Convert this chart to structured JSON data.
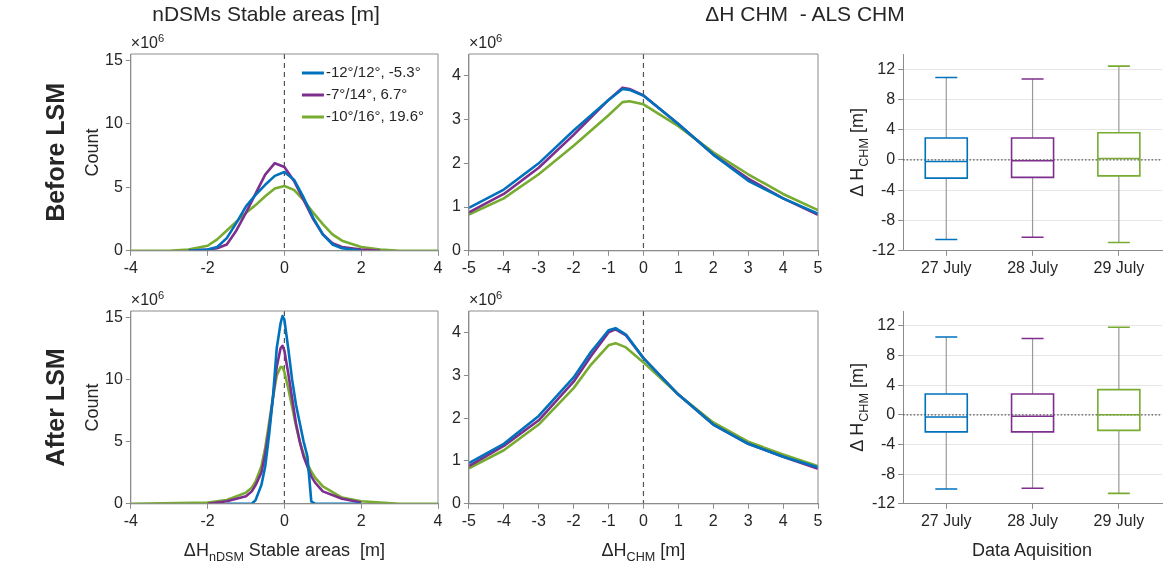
{
  "chart_data": [
    {
      "type": "line",
      "title": "nDSMs Stable areas [m]",
      "ylabel": "Count",
      "annotations": [
        "×10$^{6}$",
        "Before LSM"
      ],
      "x": [
        -4,
        -3,
        -2.5,
        -2,
        -1.75,
        -1.5,
        -1.25,
        -1,
        -0.75,
        -0.5,
        -0.25,
        0,
        0.25,
        0.5,
        0.75,
        1,
        1.25,
        1.5,
        2,
        2.5,
        3,
        4
      ],
      "xlim": [
        -4,
        4
      ],
      "xticks": [
        -4,
        -2,
        0,
        2,
        4
      ],
      "ylim": [
        0,
        15.5
      ],
      "yticks": [
        0,
        5,
        10,
        15
      ],
      "legend": "top right",
      "ref_lines": [
        {
          "axis": "x",
          "value": 0,
          "line_style": "dashed"
        }
      ],
      "series": [
        {
          "name": "-12°/12°, -5.3°",
          "color": "#0072bd",
          "values": [
            null,
            null,
            0,
            0.1,
            0.3,
            1.0,
            2.2,
            3.5,
            4.4,
            5.2,
            5.9,
            6.2,
            5.6,
            4.2,
            2.6,
            1.3,
            0.5,
            0.2,
            0,
            null,
            null,
            null
          ]
        },
        {
          "name": "-7°/14°, 6.7°",
          "color": "#7e2f8e",
          "values": [
            null,
            null,
            0,
            0.1,
            0.2,
            0.5,
            1.6,
            3.0,
            4.5,
            6.0,
            6.9,
            6.6,
            5.5,
            4.0,
            2.5,
            1.3,
            0.6,
            0.3,
            0.1,
            0,
            null,
            null
          ]
        },
        {
          "name": "-10°/16°, 19.6°",
          "color": "#77ac30",
          "values": [
            0,
            0,
            0.1,
            0.4,
            0.9,
            1.6,
            2.3,
            3.0,
            3.6,
            4.3,
            4.9,
            5.1,
            4.8,
            4.0,
            3.0,
            2.1,
            1.3,
            0.8,
            0.3,
            0.1,
            0,
            0
          ]
        }
      ]
    },
    {
      "type": "line",
      "title": "ΔH CHM  - ALS CHM",
      "annotations": [
        "×10$^{6}$"
      ],
      "x": [
        -5,
        -4,
        -3,
        -2,
        -1,
        -0.6,
        -0.4,
        0,
        1,
        2,
        3,
        4,
        5
      ],
      "xlim": [
        -5,
        5
      ],
      "xticks": [
        -5,
        -4,
        -3,
        -2,
        -1,
        0,
        1,
        2,
        3,
        4,
        5
      ],
      "ylim": [
        0,
        4.5
      ],
      "yticks": [
        0,
        1,
        2,
        3,
        4
      ],
      "ref_lines": [
        {
          "axis": "x",
          "value": 0,
          "line_style": "dashed"
        }
      ],
      "series": [
        {
          "color": "#0072bd",
          "values": [
            0.98,
            1.4,
            2.0,
            2.75,
            3.45,
            3.7,
            3.68,
            3.55,
            2.9,
            2.2,
            1.6,
            1.2,
            0.85
          ]
        },
        {
          "color": "#7e2f8e",
          "values": [
            0.88,
            1.3,
            1.9,
            2.65,
            3.45,
            3.73,
            3.7,
            3.55,
            2.9,
            2.2,
            1.65,
            1.2,
            0.82
          ]
        },
        {
          "color": "#77ac30",
          "values": [
            0.83,
            1.2,
            1.75,
            2.4,
            3.1,
            3.4,
            3.42,
            3.35,
            2.85,
            2.25,
            1.75,
            1.3,
            0.93
          ]
        }
      ]
    },
    {
      "type": "box",
      "ylabel": "Δ H$_{CHM}$ [m]",
      "categories": [
        "27 July",
        "28 July",
        "29 July"
      ],
      "colors": [
        "#0072bd",
        "#7e2f8e",
        "#77ac30"
      ],
      "ylim": [
        -12,
        14
      ],
      "yticks": [
        -12,
        -8,
        -4,
        0,
        4,
        8,
        12
      ],
      "grid": "y",
      "ref_lines": [
        {
          "axis": "y",
          "value": 0,
          "line_style": "dotted"
        }
      ],
      "boxes": [
        {
          "low": -10.5,
          "q1": -2.4,
          "median": -0.2,
          "q3": 2.9,
          "high": 10.9
        },
        {
          "low": -10.2,
          "q1": -2.3,
          "median": -0.1,
          "q3": 2.9,
          "high": 10.7
        },
        {
          "low": -10.9,
          "q1": -2.1,
          "median": 0.2,
          "q3": 3.6,
          "high": 12.4
        }
      ]
    },
    {
      "type": "line",
      "ylabel": "Count",
      "xlabel": "ΔH$_{nDSM}$ Stable areas  [m]",
      "annotations": [
        "×10$^{6}$",
        "After LSM"
      ],
      "x": [
        -4,
        -2,
        -1.5,
        -1,
        -0.85,
        -0.75,
        -0.6,
        -0.5,
        -0.4,
        -0.3,
        -0.2,
        -0.1,
        -0.05,
        0,
        0.1,
        0.2,
        0.3,
        0.4,
        0.5,
        0.6,
        0.7,
        0.8,
        1,
        1.5,
        2,
        3,
        4
      ],
      "xlim": [
        -4,
        4
      ],
      "xticks": [
        -4,
        -2,
        0,
        2,
        4
      ],
      "ylim": [
        0,
        15.5
      ],
      "yticks": [
        0,
        5,
        10,
        15
      ],
      "ref_lines": [
        {
          "axis": "x",
          "value": 0,
          "line_style": "dashed"
        }
      ],
      "series": [
        {
          "color": "#0072bd",
          "values": [
            null,
            null,
            0,
            0,
            0,
            0.3,
            1.5,
            3.0,
            5.5,
            8.5,
            12.5,
            14.5,
            15.1,
            14.8,
            12.5,
            10,
            8,
            6.5,
            5,
            3.8,
            0.2,
            0,
            0,
            0,
            0,
            null,
            null
          ]
        },
        {
          "color": "#7e2f8e",
          "values": [
            null,
            0,
            0.2,
            0.6,
            1.0,
            1.5,
            2.5,
            4,
            6,
            8.5,
            11,
            12.5,
            12.7,
            12.3,
            10.5,
            8.5,
            6.5,
            5,
            3.8,
            3.0,
            2.2,
            1.7,
            1.0,
            0.4,
            0.1,
            null,
            null
          ]
        },
        {
          "color": "#77ac30",
          "values": [
            0,
            0.1,
            0.3,
            0.9,
            1.3,
            1.8,
            3.0,
            4.5,
            6.5,
            8.5,
            10.3,
            11,
            11,
            10.6,
            9.3,
            7.8,
            6.3,
            5,
            4,
            3.2,
            2.6,
            2.1,
            1.4,
            0.5,
            0.2,
            0,
            0
          ]
        }
      ]
    },
    {
      "type": "line",
      "xlabel": "ΔH$_{CHM}$ [m]",
      "annotations": [
        "×10$^{6}$"
      ],
      "x": [
        -5,
        -4,
        -3,
        -2,
        -1.5,
        -1,
        -0.8,
        -0.5,
        0,
        1,
        2,
        3,
        4,
        5
      ],
      "xlim": [
        -5,
        5
      ],
      "xticks": [
        -5,
        -4,
        -3,
        -2,
        -1,
        0,
        1,
        2,
        3,
        4,
        5
      ],
      "ylim": [
        0,
        4.5
      ],
      "yticks": [
        0,
        1,
        2,
        3,
        4
      ],
      "ref_lines": [
        {
          "axis": "x",
          "value": 0,
          "line_style": "dashed"
        }
      ],
      "series": [
        {
          "color": "#0072bd",
          "values": [
            0.95,
            1.4,
            2.05,
            2.95,
            3.55,
            4.05,
            4.1,
            3.95,
            3.4,
            2.55,
            1.85,
            1.4,
            1.1,
            0.85
          ]
        },
        {
          "color": "#7e2f8e",
          "values": [
            0.88,
            1.35,
            1.95,
            2.85,
            3.45,
            4.0,
            4.07,
            3.93,
            3.4,
            2.55,
            1.85,
            1.4,
            1.1,
            0.82
          ]
        },
        {
          "color": "#77ac30",
          "values": [
            0.83,
            1.25,
            1.85,
            2.7,
            3.25,
            3.7,
            3.75,
            3.65,
            3.3,
            2.55,
            1.9,
            1.45,
            1.15,
            0.88
          ]
        }
      ]
    },
    {
      "type": "box",
      "ylabel": "Δ H$_{CHM}$ [m]",
      "xlabel": "Data Aquisition",
      "categories": [
        "27 July",
        "28 July",
        "29 July"
      ],
      "colors": [
        "#0072bd",
        "#7e2f8e",
        "#77ac30"
      ],
      "ylim": [
        -12,
        14
      ],
      "yticks": [
        -12,
        -8,
        -4,
        0,
        4,
        8,
        12
      ],
      "grid": "y",
      "ref_lines": [
        {
          "axis": "y",
          "value": 0,
          "line_style": "dotted"
        }
      ],
      "boxes": [
        {
          "low": -10,
          "q1": -2.3,
          "median": -0.3,
          "q3": 2.8,
          "high": 10.5
        },
        {
          "low": -9.9,
          "q1": -2.3,
          "median": -0.2,
          "q3": 2.8,
          "high": 10.3
        },
        {
          "low": -10.6,
          "q1": -2.1,
          "median": 0,
          "q3": 3.4,
          "high": 11.8
        }
      ]
    }
  ]
}
